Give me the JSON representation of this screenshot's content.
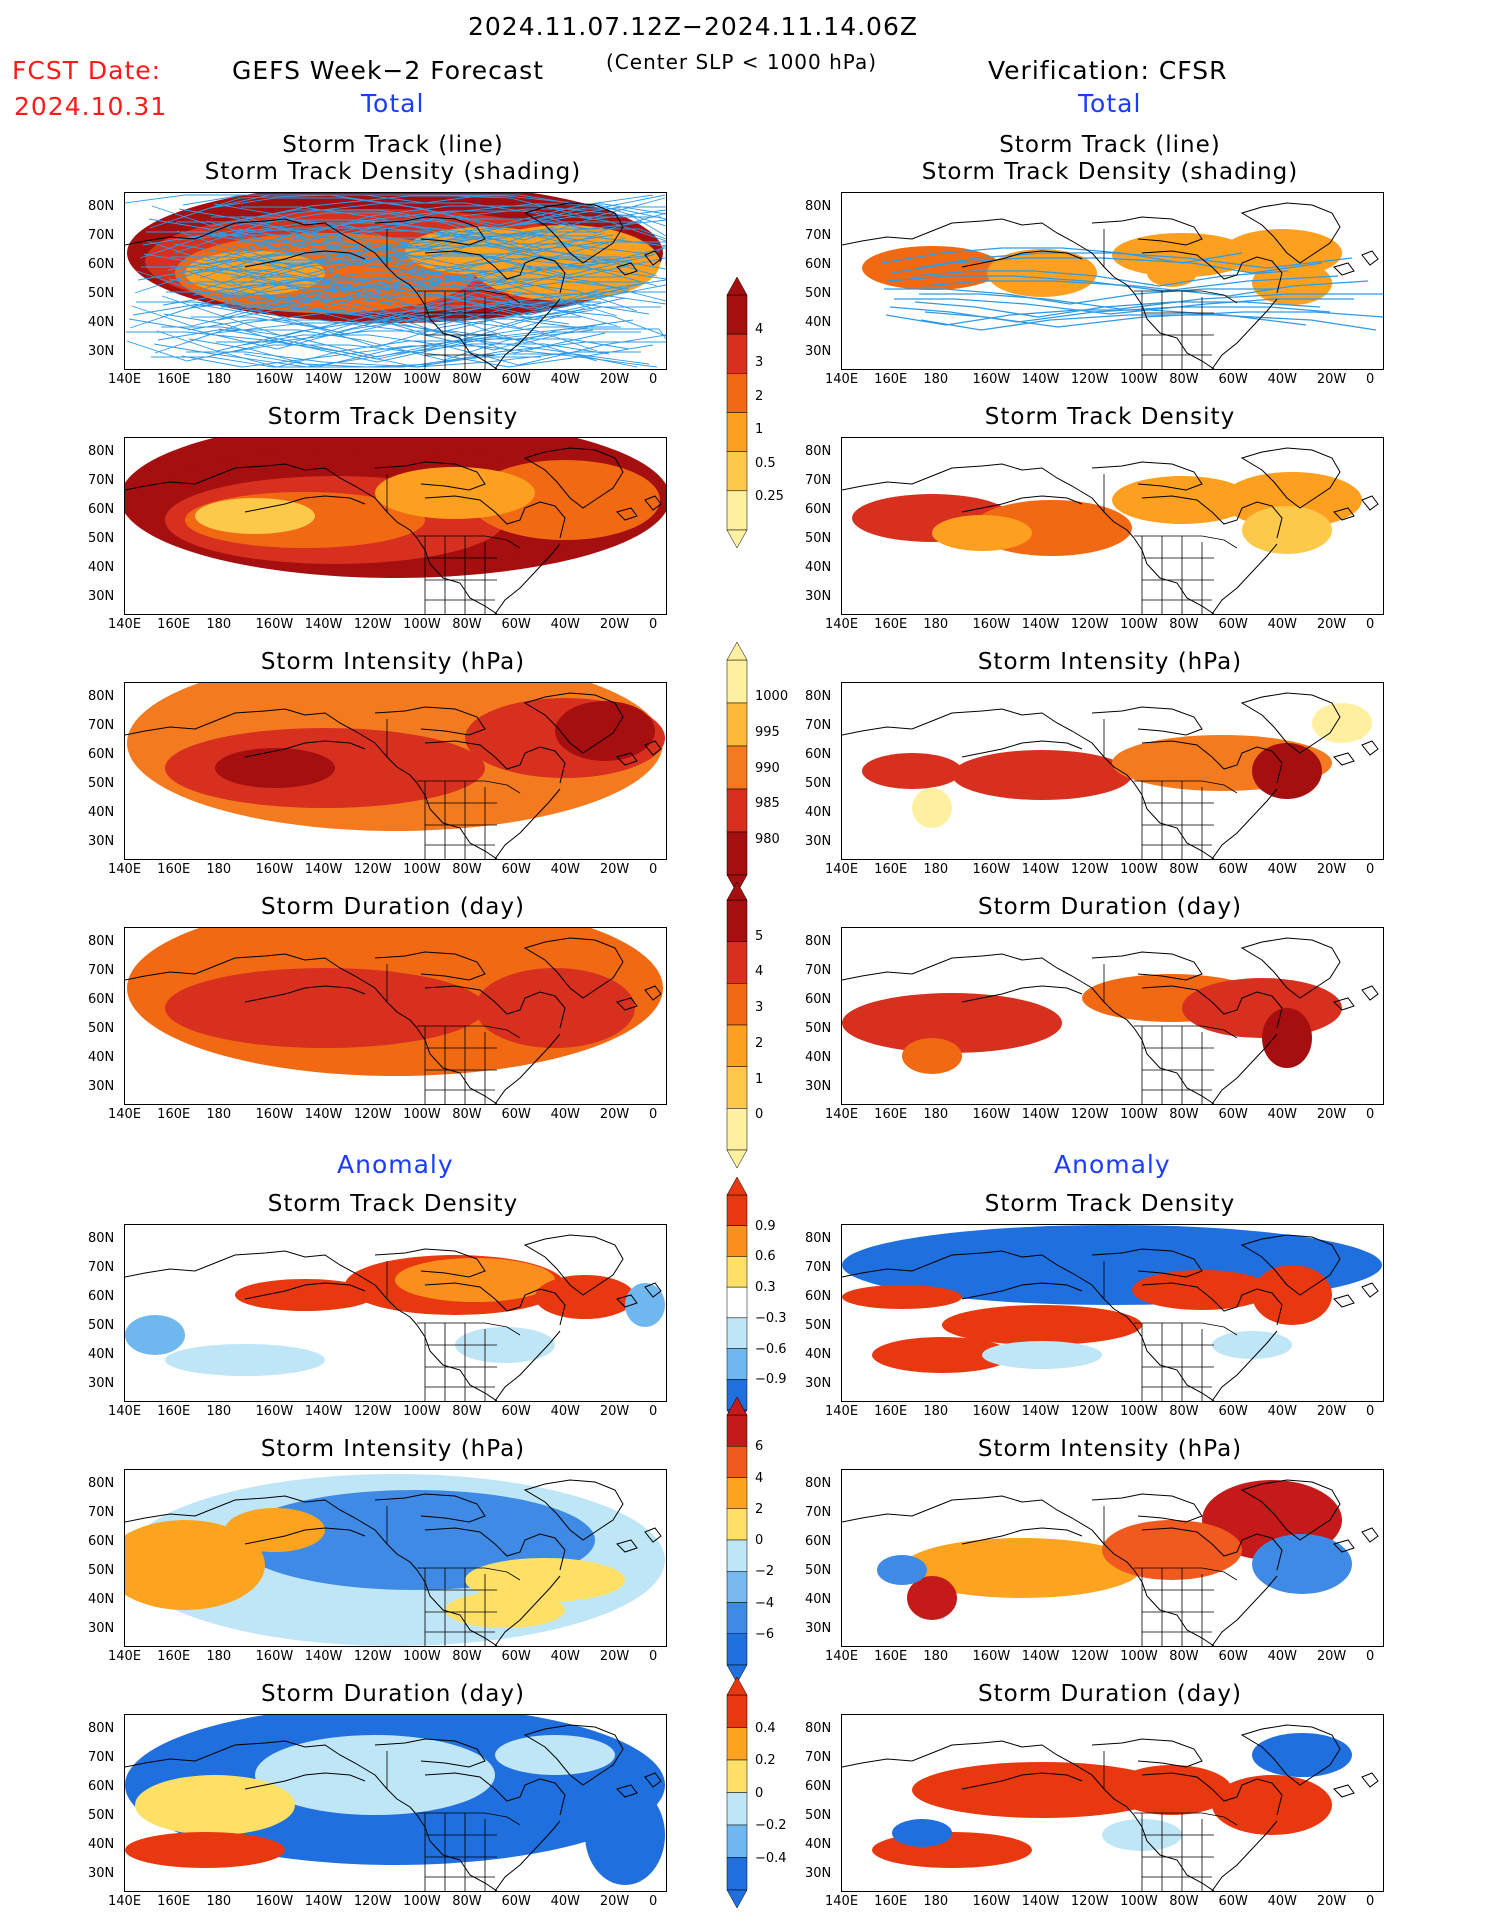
{
  "header": {
    "period": "2024.11.07.12Z−2024.11.14.06Z",
    "fcst_label": "FCST Date:",
    "fcst_date": "2024.10.31",
    "left_title": "GEFS Week−2 Forecast",
    "criterion": "(Center SLP < 1000 hPa)",
    "right_title": "Verification: CFSR",
    "section_total": "Total",
    "section_anomaly": "Anomaly"
  },
  "panel_titles": {
    "track_line": "Storm Track (line)",
    "track_density_shading": "Storm Track Density (shading)",
    "track_density": "Storm Track Density",
    "intensity": "Storm Intensity (hPa)",
    "duration": "Storm Duration (day)"
  },
  "axes": {
    "lon_labels": [
      "140E",
      "160E",
      "180",
      "160W",
      "140W",
      "120W",
      "100W",
      "80W",
      "60W",
      "40W",
      "20W",
      "0"
    ],
    "lat_labels": [
      "80N",
      "70N",
      "60N",
      "50N",
      "40N",
      "30N"
    ]
  },
  "colorbars": {
    "density_total": {
      "labels": [
        "4",
        "3",
        "2",
        "1",
        "0.5",
        "0.25"
      ],
      "colors": [
        "#a50f0f",
        "#d7301f",
        "#f16913",
        "#fd9f1f",
        "#fdc94a",
        "#fef0a0"
      ]
    },
    "intensity_total": {
      "labels": [
        "1000",
        "995",
        "990",
        "985",
        "980"
      ],
      "colors": [
        "#fef0a0",
        "#fdb93a",
        "#f47a1f",
        "#d7301f",
        "#a50f0f"
      ]
    },
    "duration_total": {
      "labels": [
        "5",
        "4",
        "3",
        "2",
        "1",
        "0"
      ],
      "colors": [
        "#a50f0f",
        "#d7301f",
        "#f16913",
        "#fd9f1f",
        "#fdc94a",
        "#fef0a0"
      ]
    },
    "density_anom": {
      "labels": [
        "0.9",
        "0.6",
        "0.3",
        "−0.3",
        "−0.6",
        "−0.9"
      ],
      "colors": [
        "#e8380f",
        "#fb8f1d",
        "#fde065",
        "#ffffff",
        "#bfe6f7",
        "#6fb7ef",
        "#1f6fde"
      ]
    },
    "intensity_anom": {
      "labels": [
        "6",
        "4",
        "2",
        "0",
        "−2",
        "−4",
        "−6"
      ],
      "colors": [
        "#c41a1a",
        "#f15a1f",
        "#fca41f",
        "#fde065",
        "#bfe6f7",
        "#79b9ee",
        "#3f8ae4",
        "#1f6fde"
      ]
    },
    "duration_anom": {
      "labels": [
        "0.4",
        "0.2",
        "0",
        "−0.2",
        "−0.4"
      ],
      "colors": [
        "#e8380f",
        "#fca41f",
        "#fde065",
        "#bfe6f7",
        "#6fb7ef",
        "#1f6fde"
      ]
    }
  },
  "palette": {
    "track_line": "#2e9be6",
    "land_line": "#000000"
  }
}
